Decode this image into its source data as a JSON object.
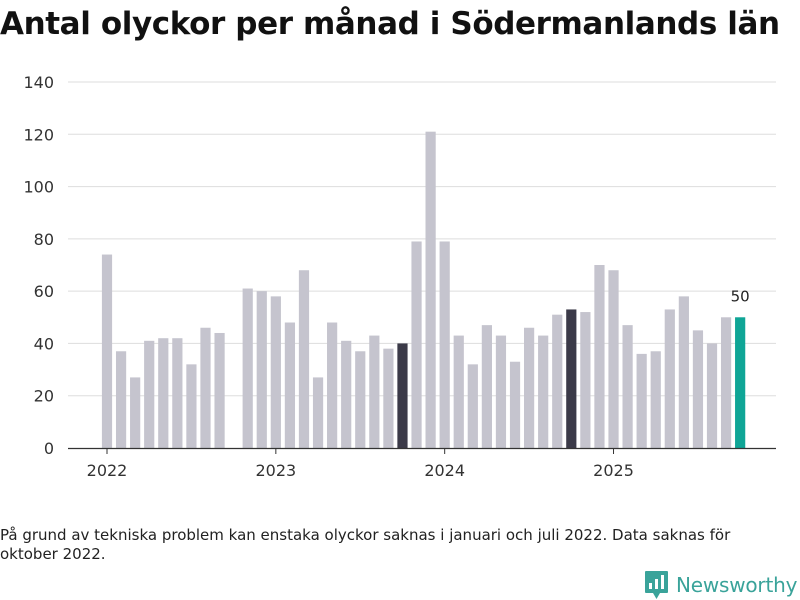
{
  "title": "Antal olyckor per månad i Södermanlands län",
  "note": "På grund av tekniska problem kan enstaka olyckor saknas i januari och juli 2022. Data saknas för oktober 2022.",
  "brand": {
    "name": "Newsworthy",
    "icon": "newsworthy-logo-icon"
  },
  "colors": {
    "regular": "#c5c4ce",
    "highlight": "#3b3a48",
    "latest": "#0fa596",
    "grid": "#dddddd",
    "axis": "#333333"
  },
  "chart_data": {
    "type": "bar",
    "title": "Antal olyckor per månad i Södermanlands län",
    "xlabel": "",
    "ylabel": "",
    "ylim": [
      0,
      140
    ],
    "yticks": [
      0,
      20,
      40,
      60,
      80,
      100,
      120,
      140
    ],
    "xticks": [
      {
        "label": "2022",
        "index": 0
      },
      {
        "label": "2023",
        "index": 12
      },
      {
        "label": "2024",
        "index": 24
      },
      {
        "label": "2025",
        "index": 36
      }
    ],
    "categories": [
      "2022-01",
      "2022-02",
      "2022-03",
      "2022-04",
      "2022-05",
      "2022-06",
      "2022-07",
      "2022-08",
      "2022-09",
      "2022-10",
      "2022-11",
      "2022-12",
      "2023-01",
      "2023-02",
      "2023-03",
      "2023-04",
      "2023-05",
      "2023-06",
      "2023-07",
      "2023-08",
      "2023-09",
      "2023-10",
      "2023-11",
      "2023-12",
      "2024-01",
      "2024-02",
      "2024-03",
      "2024-04",
      "2024-05",
      "2024-06",
      "2024-07",
      "2024-08",
      "2024-09",
      "2024-10",
      "2024-11",
      "2024-12",
      "2025-01",
      "2025-02",
      "2025-03",
      "2025-04",
      "2025-05",
      "2025-06",
      "2025-07",
      "2025-08",
      "2025-09",
      "2025-10"
    ],
    "values": [
      74,
      37,
      27,
      41,
      42,
      42,
      32,
      46,
      44,
      null,
      61,
      60,
      58,
      48,
      68,
      27,
      48,
      41,
      37,
      43,
      38,
      40,
      79,
      121,
      79,
      43,
      32,
      47,
      43,
      33,
      46,
      43,
      51,
      53,
      52,
      70,
      68,
      47,
      36,
      37,
      53,
      58,
      45,
      40,
      50,
      50
    ],
    "highlight": [
      21,
      33
    ],
    "latest": 45,
    "annotations": [
      {
        "index": 45,
        "text": "50"
      }
    ],
    "grid": true,
    "legend": "none"
  }
}
